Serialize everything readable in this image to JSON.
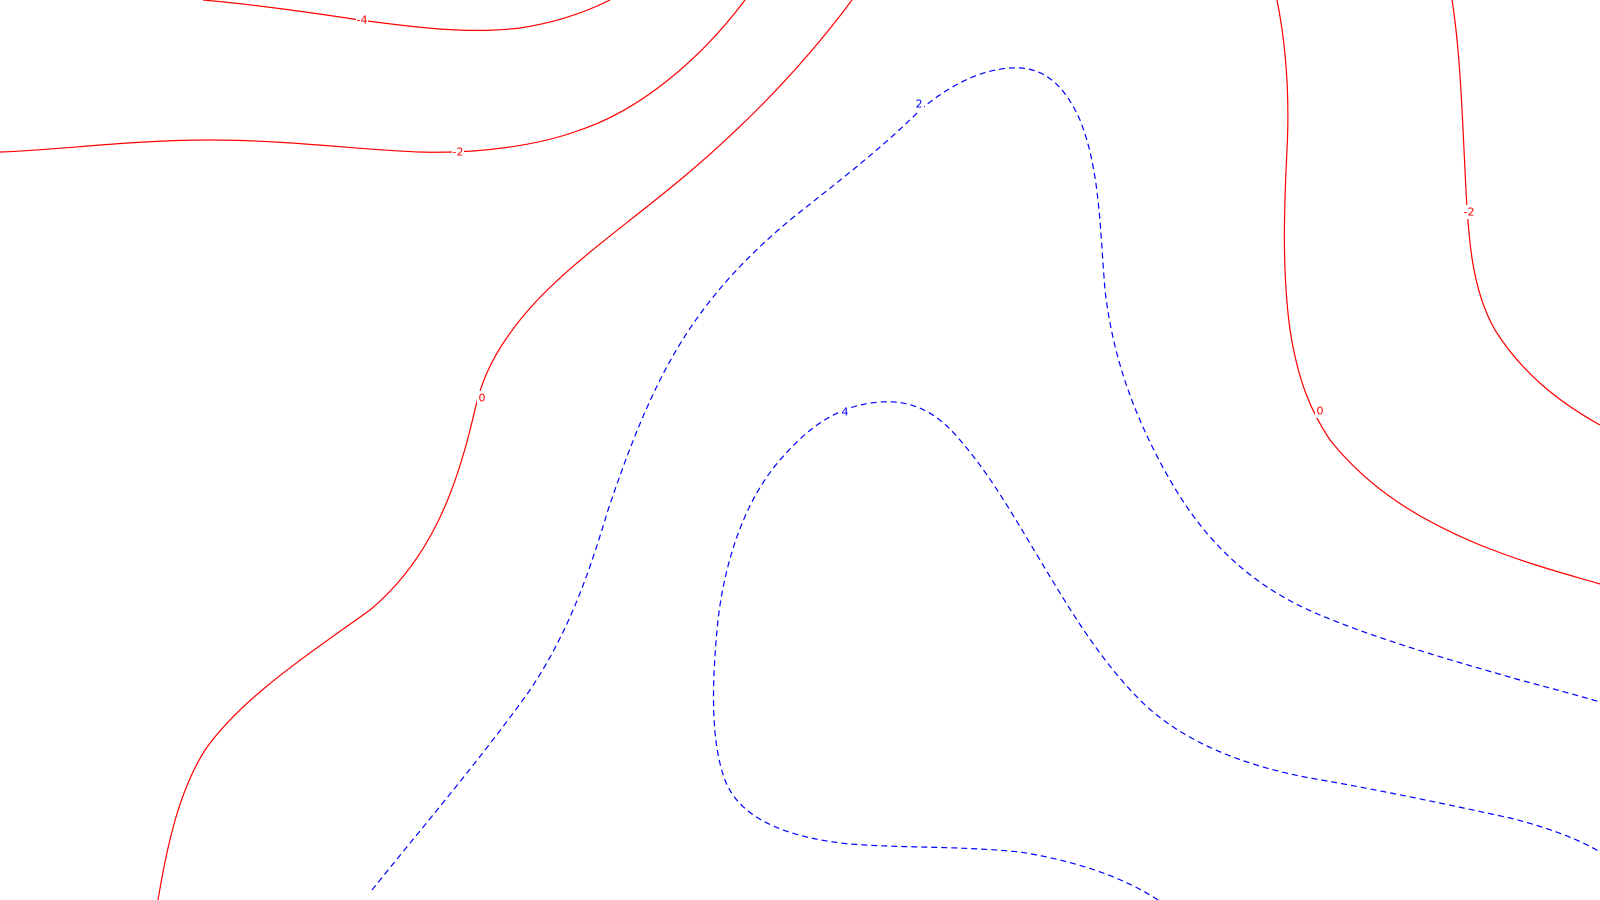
{
  "map": {
    "type": "contour",
    "colors": {
      "negative": "#ff0000",
      "positive": "#0000ff",
      "background": "#ffffff"
    },
    "contours": [
      {
        "id": "neg4-top",
        "level": -4,
        "label": "-4",
        "color": "#ff0000",
        "style": "solid"
      },
      {
        "id": "neg2-top",
        "level": -2,
        "label": "-2",
        "color": "#ff0000",
        "style": "solid"
      },
      {
        "id": "zero-left",
        "level": 0,
        "label": "0",
        "color": "#ff0000",
        "style": "solid"
      },
      {
        "id": "pos2",
        "level": 2,
        "label": "2",
        "color": "#0000ff",
        "style": "dashed"
      },
      {
        "id": "pos4",
        "level": 4,
        "label": "4",
        "color": "#0000ff",
        "style": "dashed"
      },
      {
        "id": "zero-right",
        "level": 0,
        "label": "0",
        "color": "#ff0000",
        "style": "solid"
      },
      {
        "id": "neg2-right",
        "level": -2,
        "label": "-2",
        "color": "#ff0000",
        "style": "solid"
      }
    ]
  }
}
